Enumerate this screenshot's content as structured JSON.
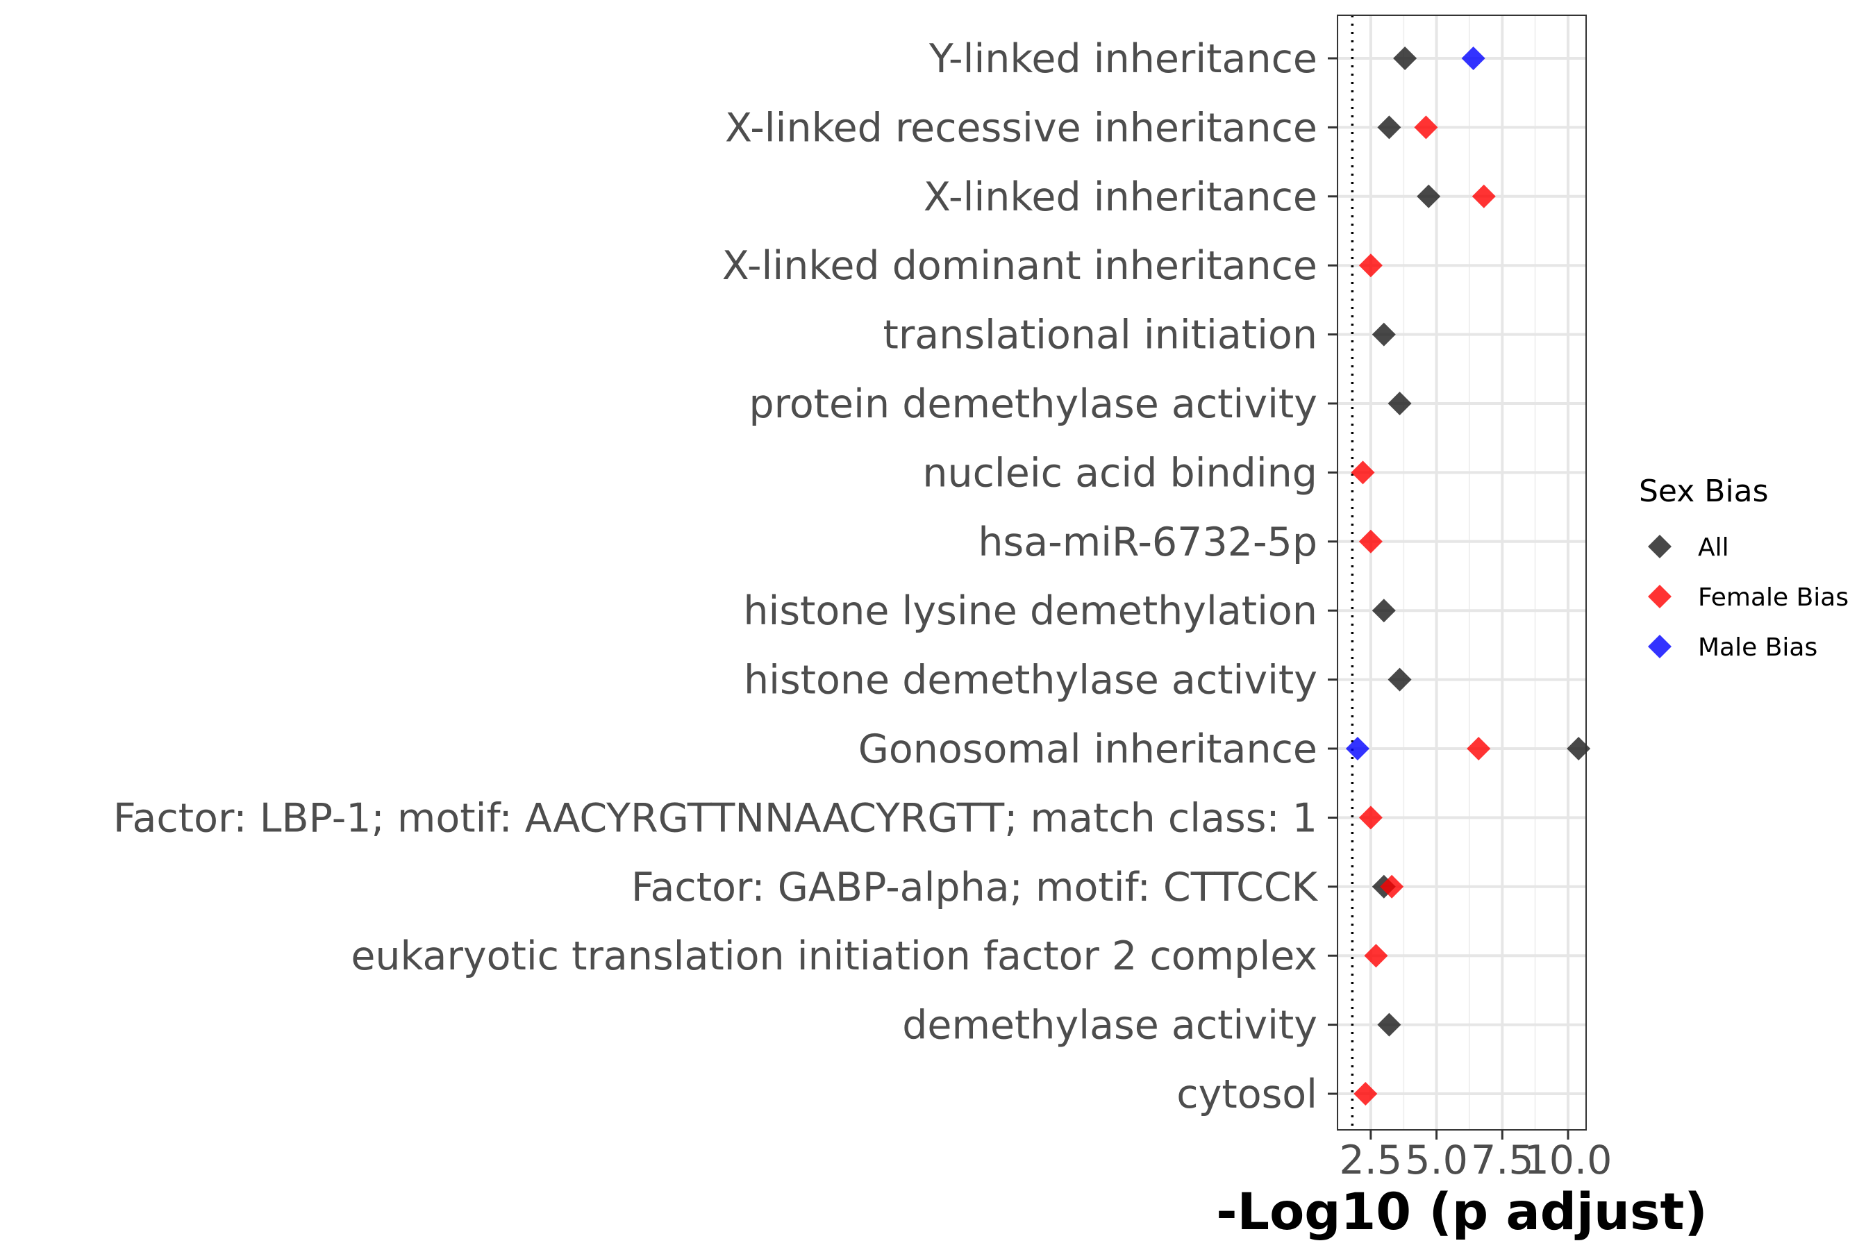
{
  "chart_data": {
    "type": "scatter",
    "xlabel": "-Log10 (p adjust)",
    "xlim": [
      1.5,
      10.5
    ],
    "xticks": [
      2.5,
      5.0,
      7.5,
      10.0
    ],
    "xtick_labels": [
      "2.5",
      "5.0",
      "7.5",
      "10.0"
    ],
    "threshold_x": 1.8,
    "grid": true,
    "legend_position": "right",
    "legend_title": "Sex Bias",
    "series": [
      {
        "name": "All",
        "color": "#1a1a1a"
      },
      {
        "name": "Female Bias",
        "color": "#ff0000"
      },
      {
        "name": "Male Bias",
        "color": "#0000ff"
      }
    ],
    "categories": [
      "Y-linked inheritance",
      "X-linked recessive inheritance",
      "X-linked inheritance",
      "X-linked dominant inheritance",
      "translational initiation",
      "protein demethylase activity",
      "nucleic acid binding",
      "hsa-miR-6732-5p",
      "histone lysine demethylation",
      "histone demethylase activity",
      "Gonosomal inheritance",
      "Factor: LBP-1; motif: AACYRGTTNNAACYRGTT; match class: 1",
      "Factor: GABP-alpha; motif: CTTCCK",
      "eukaryotic translation initiation factor 2 complex",
      "demethylase activity",
      "cytosol"
    ],
    "points": [
      {
        "category": "Y-linked inheritance",
        "series": "All",
        "x": 3.8
      },
      {
        "category": "Y-linked inheritance",
        "series": "Male Bias",
        "x": 6.4
      },
      {
        "category": "X-linked recessive inheritance",
        "series": "All",
        "x": 3.2
      },
      {
        "category": "X-linked recessive inheritance",
        "series": "Female Bias",
        "x": 4.6
      },
      {
        "category": "X-linked inheritance",
        "series": "All",
        "x": 4.7
      },
      {
        "category": "X-linked inheritance",
        "series": "Female Bias",
        "x": 6.8
      },
      {
        "category": "X-linked dominant inheritance",
        "series": "Female Bias",
        "x": 2.5
      },
      {
        "category": "translational initiation",
        "series": "All",
        "x": 3.0
      },
      {
        "category": "protein demethylase activity",
        "series": "All",
        "x": 3.6
      },
      {
        "category": "nucleic acid binding",
        "series": "Female Bias",
        "x": 2.2
      },
      {
        "category": "hsa-miR-6732-5p",
        "series": "Female Bias",
        "x": 2.5
      },
      {
        "category": "histone lysine demethylation",
        "series": "All",
        "x": 3.0
      },
      {
        "category": "histone demethylase activity",
        "series": "All",
        "x": 3.6
      },
      {
        "category": "Gonosomal inheritance",
        "series": "Male Bias",
        "x": 2.0
      },
      {
        "category": "Gonosomal inheritance",
        "series": "Female Bias",
        "x": 6.6
      },
      {
        "category": "Gonosomal inheritance",
        "series": "All",
        "x": 10.4
      },
      {
        "category": "Factor: LBP-1; motif: AACYRGTTNNAACYRGTT; match class: 1",
        "series": "Female Bias",
        "x": 2.5
      },
      {
        "category": "Factor: GABP-alpha; motif: CTTCCK",
        "series": "All",
        "x": 3.0
      },
      {
        "category": "Factor: GABP-alpha; motif: CTTCCK",
        "series": "Female Bias",
        "x": 3.3
      },
      {
        "category": "eukaryotic translation initiation factor 2 complex",
        "series": "Female Bias",
        "x": 2.7
      },
      {
        "category": "demethylase activity",
        "series": "All",
        "x": 3.2
      },
      {
        "category": "cytosol",
        "series": "Female Bias",
        "x": 2.3
      }
    ]
  }
}
